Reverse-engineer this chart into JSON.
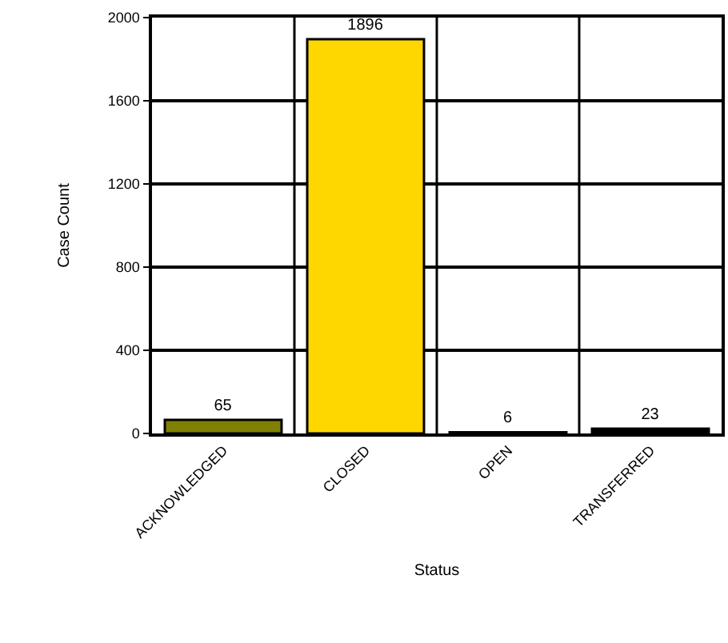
{
  "chart_data": {
    "type": "bar",
    "xlabel": "Status",
    "ylabel": "Case Count",
    "categories": [
      "ACKNOWLEDGED",
      "CLOSED",
      "OPEN",
      "TRANSFERRED"
    ],
    "values": [
      65,
      1896,
      6,
      23
    ],
    "colors": [
      "#808000",
      "#ffd700",
      "#808080",
      "#000000"
    ],
    "ylim": [
      0,
      2000
    ],
    "yticks": [
      0,
      400,
      800,
      1200,
      1600,
      2000
    ],
    "grid": true,
    "data_labels": true
  }
}
